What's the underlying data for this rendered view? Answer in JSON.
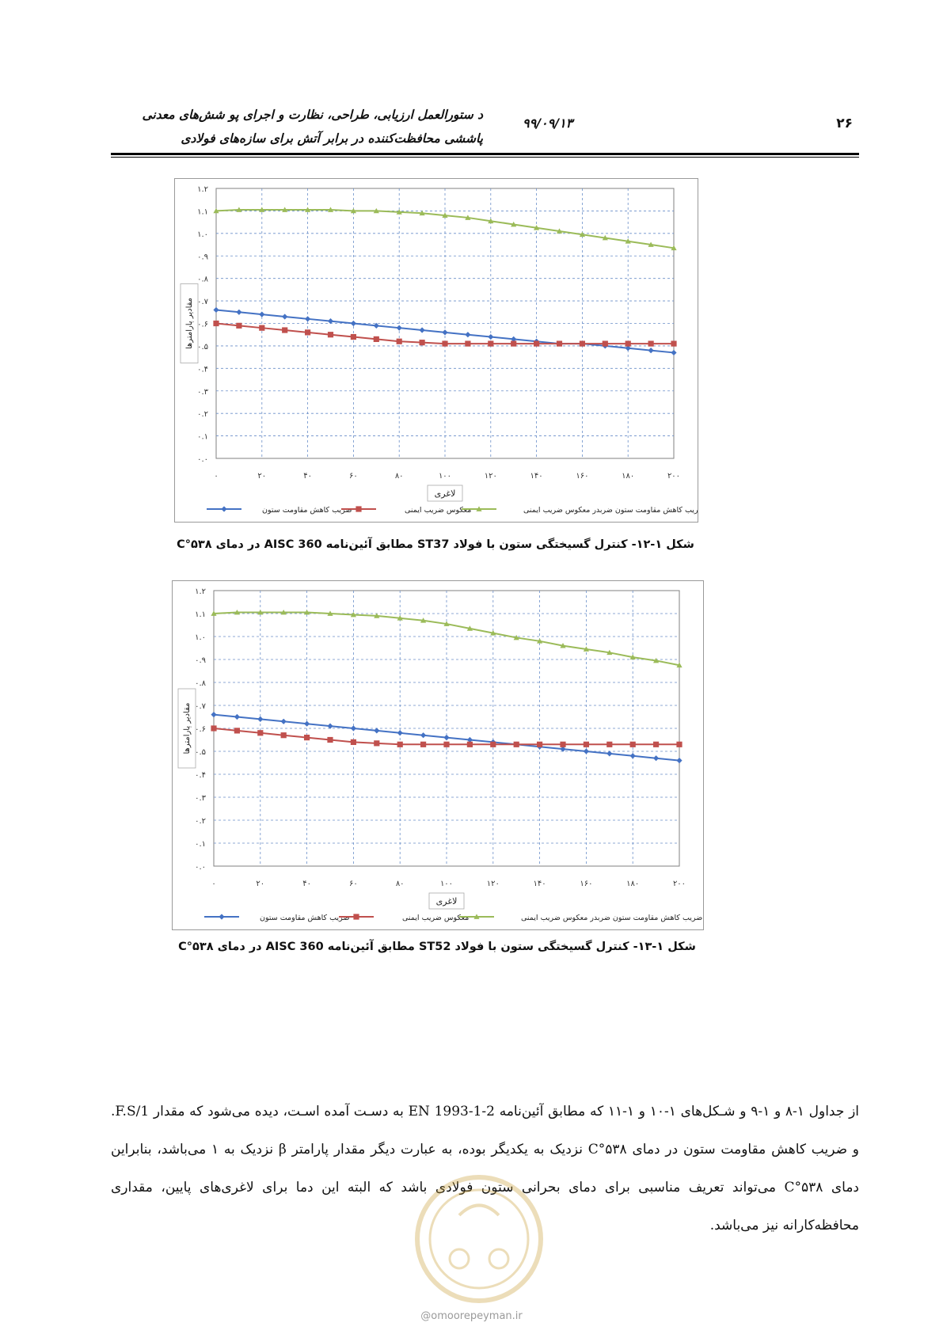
{
  "header": {
    "page_number": "۲۶",
    "date": "۹۹/۰۹/۱۳",
    "title_line1": "د ستورالعمل ارزیابی، طراحی، نظارت و اجرای پو شش‌های معدنی",
    "title_line2": "پاششی محافظت‌کننده در برابر آتش برای سازه‌های فولادی"
  },
  "charts": [
    {
      "caption": "شکل ۱-۱۲- کنترل گسیختگی ستون با فولاد ST37 مطابق آئین‌نامه AISC 360 در دمای ۵۳۸°C",
      "xlabel": "لاغری",
      "ylabel": "مقادیر پارامترها",
      "x_ticks": [
        "۰",
        "۲۰",
        "۴۰",
        "۶۰",
        "۸۰",
        "۱۰۰",
        "۱۲۰",
        "۱۴۰",
        "۱۶۰",
        "۱۸۰",
        "۲۰۰"
      ],
      "y_ticks": [
        "۰.۰",
        "۰.۱",
        "۰.۲",
        "۰.۳",
        "۰.۴",
        "۰.۵",
        "۰.۶",
        "۰.۷",
        "۰.۸",
        "۰.۹",
        "۱.۰",
        "۱.۱",
        "۱.۲"
      ]
    },
    {
      "caption": "شکل ۱-۱۳- کنترل گسیختگی ستون با فولاد ST52 مطابق آئین‌نامه AISC 360 در دمای ۵۳۸°C",
      "xlabel": "لاغری",
      "ylabel": "مقادیر پارامترها",
      "x_ticks": [
        "۰",
        "۲۰",
        "۴۰",
        "۶۰",
        "۸۰",
        "۱۰۰",
        "۱۲۰",
        "۱۴۰",
        "۱۶۰",
        "۱۸۰",
        "۲۰۰"
      ],
      "y_ticks": [
        "۰.۰",
        "۰.۱",
        "۰.۲",
        "۰.۳",
        "۰.۴",
        "۰.۵",
        "۰.۶",
        "۰.۷",
        "۰.۸",
        "۰.۹",
        "۱.۰",
        "۱.۱",
        "۱.۲"
      ]
    }
  ],
  "chart_data": [
    {
      "type": "line",
      "xlabel": "لاغری",
      "ylabel": "مقادیر پارامترها",
      "xlim": [
        0,
        200
      ],
      "ylim": [
        0,
        1.2
      ],
      "grid": true,
      "legend_position": "bottom",
      "x": [
        0,
        10,
        20,
        30,
        40,
        50,
        60,
        70,
        80,
        90,
        100,
        110,
        120,
        130,
        140,
        150,
        160,
        170,
        180,
        190,
        200
      ],
      "series": [
        {
          "name": "ضریب کاهش مقاومت ستون",
          "color": "#4472c4",
          "marker": "diamond",
          "values": [
            0.66,
            0.65,
            0.64,
            0.63,
            0.62,
            0.61,
            0.6,
            0.59,
            0.58,
            0.57,
            0.56,
            0.55,
            0.54,
            0.53,
            0.52,
            0.51,
            0.51,
            0.5,
            0.49,
            0.48,
            0.47
          ]
        },
        {
          "name": "معکوس ضریب ایمنی",
          "color": "#c0504d",
          "marker": "square",
          "values": [
            0.6,
            0.59,
            0.58,
            0.57,
            0.56,
            0.55,
            0.54,
            0.53,
            0.52,
            0.515,
            0.51,
            0.51,
            0.51,
            0.51,
            0.51,
            0.51,
            0.51,
            0.51,
            0.51,
            0.51,
            0.51
          ]
        },
        {
          "name": "ضریب کاهش مقاومت ستون ضربدر معکوس ضریب ایمنی",
          "color": "#9bbb59",
          "marker": "triangle",
          "values": [
            1.1,
            1.105,
            1.105,
            1.105,
            1.105,
            1.105,
            1.1,
            1.1,
            1.095,
            1.09,
            1.08,
            1.07,
            1.055,
            1.04,
            1.025,
            1.01,
            0.995,
            0.98,
            0.965,
            0.95,
            0.935
          ]
        }
      ]
    },
    {
      "type": "line",
      "xlabel": "لاغری",
      "ylabel": "مقادیر پارامترها",
      "xlim": [
        0,
        200
      ],
      "ylim": [
        0,
        1.2
      ],
      "grid": true,
      "legend_position": "bottom",
      "x": [
        0,
        10,
        20,
        30,
        40,
        50,
        60,
        70,
        80,
        90,
        100,
        110,
        120,
        130,
        140,
        150,
        160,
        170,
        180,
        190,
        200
      ],
      "series": [
        {
          "name": "ضریب کاهش مقاومت ستون",
          "color": "#4472c4",
          "marker": "diamond",
          "values": [
            0.66,
            0.65,
            0.64,
            0.63,
            0.62,
            0.61,
            0.6,
            0.59,
            0.58,
            0.57,
            0.56,
            0.55,
            0.54,
            0.53,
            0.52,
            0.51,
            0.5,
            0.49,
            0.48,
            0.47,
            0.46
          ]
        },
        {
          "name": "معکوس ضریب ایمنی",
          "color": "#c0504d",
          "marker": "square",
          "values": [
            0.6,
            0.59,
            0.58,
            0.57,
            0.56,
            0.55,
            0.54,
            0.535,
            0.53,
            0.53,
            0.53,
            0.53,
            0.53,
            0.53,
            0.53,
            0.53,
            0.53,
            0.53,
            0.53,
            0.53,
            0.53
          ]
        },
        {
          "name": "ضریب کاهش مقاومت ستون ضربدر معکوس ضریب ایمنی",
          "color": "#9bbb59",
          "marker": "triangle",
          "values": [
            1.1,
            1.105,
            1.105,
            1.105,
            1.105,
            1.1,
            1.095,
            1.09,
            1.08,
            1.07,
            1.055,
            1.035,
            1.015,
            0.995,
            0.98,
            0.96,
            0.945,
            0.93,
            0.91,
            0.895,
            0.875
          ]
        }
      ]
    }
  ],
  "body": {
    "paragraph": "از جداول ۱-۸ و ۱-۹ و شـکل‌های ۱-۱۰ و ۱-۱۱ که مطابق آئین‌نامه EN 1993-1-2 به دسـت آمده اسـت، دیده می‌شود که مقدار 1/F.S. و ضریب کاهش مقاومت ستون در دمای ۵۳۸°C نزدیک به یکدیگر بوده، به عبارت دیگر مقدار پارامتر β نزدیک به ۱ می‌باشد، بنابراین دمای ۵۳۸°C می‌تواند تعریف مناسبی برای دمای بحرانی ستون فولادی باشد که البته این دما برای لاغری‌های پایین، مقداری محافظه‌کارانه نیز می‌باشد."
  },
  "watermark": {
    "text": "@omoorepeyman.ir"
  }
}
